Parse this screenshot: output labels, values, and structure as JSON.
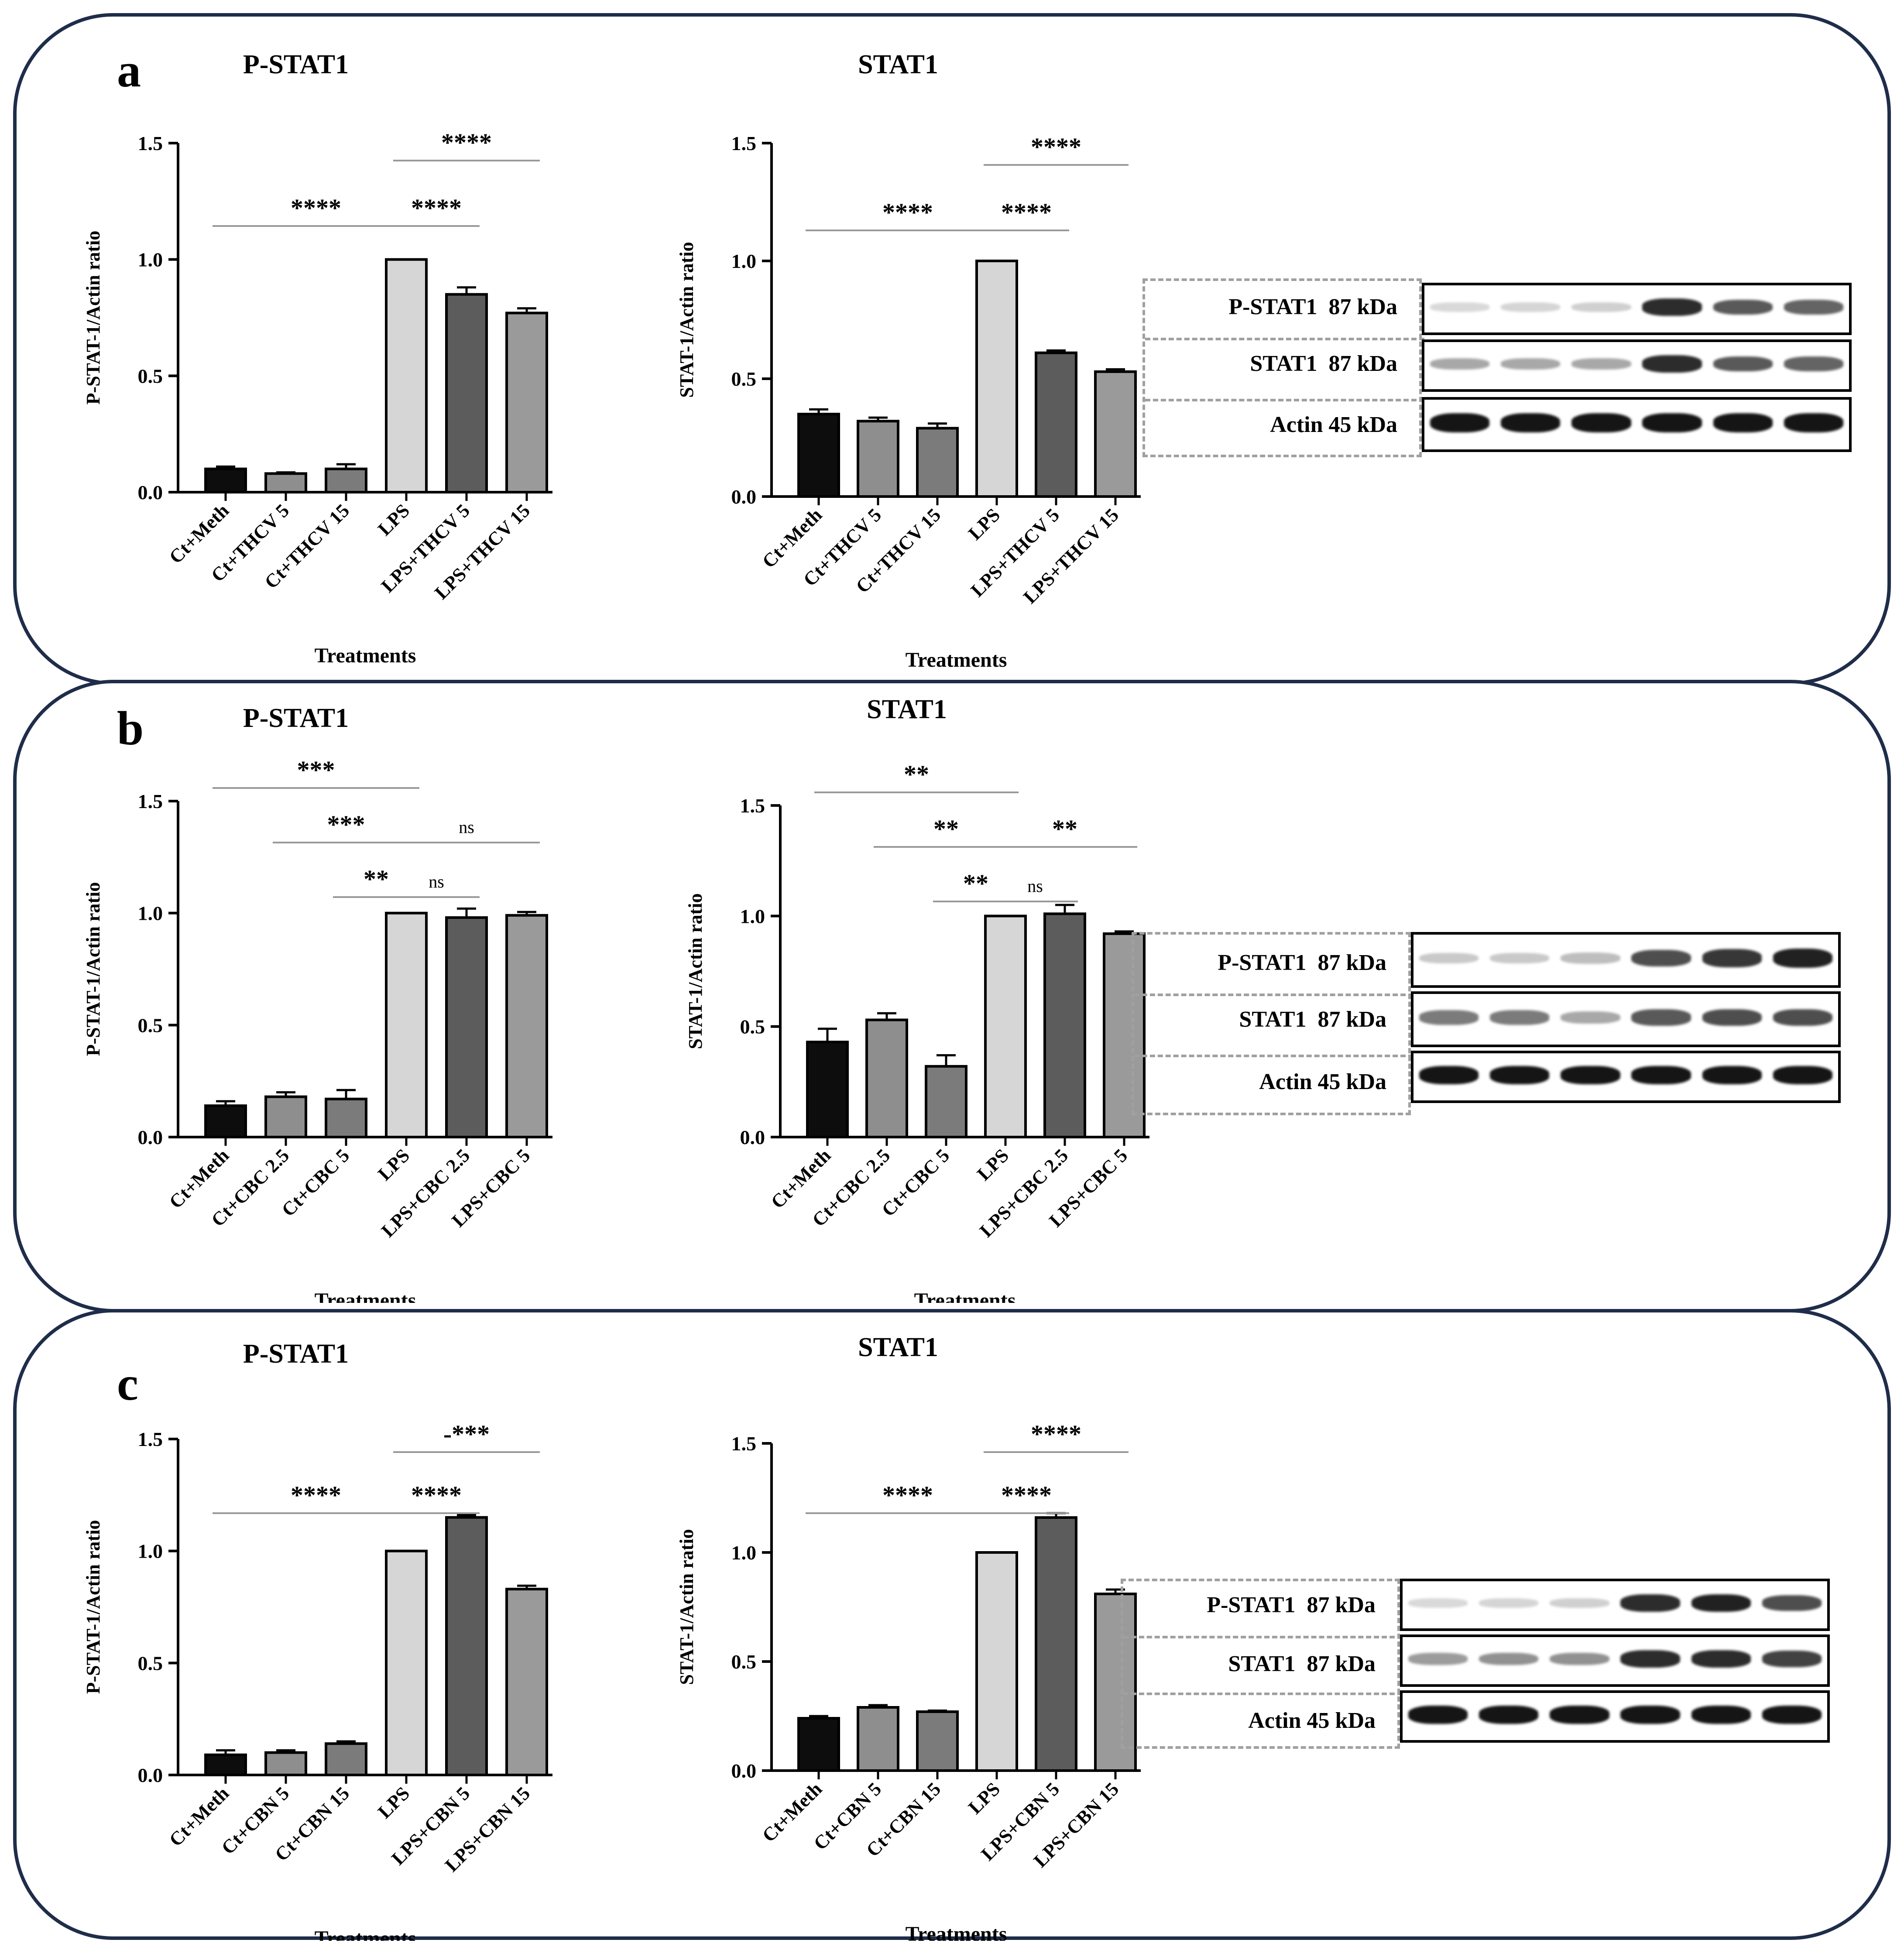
{
  "panels": [
    {
      "letter": "a",
      "charts": [
        {
          "title": "P-STAT1",
          "ylabel": "P-STAT-1/Actin ratio",
          "xlabel": "Treatments",
          "yticks": [
            "0.0",
            "0.5",
            "1.0",
            "1.5"
          ],
          "ticklabel_decimals": 1
        },
        {
          "title": "STAT1",
          "ylabel": "STAT-1/Actin ratio",
          "xlabel": "Treatments",
          "yticks": [
            "0.0",
            "0.5",
            "1.0",
            "1.5"
          ]
        }
      ],
      "blot": {
        "labels": [
          "P-STAT1  87 kDa",
          "STAT1  87 kDa",
          "Actin 45 kDa"
        ]
      }
    },
    {
      "letter": "b",
      "charts": [
        {
          "title": "P-STAT1",
          "ylabel": "P-STAT-1/Actin ratio",
          "xlabel": "Treatments",
          "yticks": [
            "0.0",
            "0.5",
            "1.0",
            "1.5"
          ]
        },
        {
          "title": "STAT1",
          "ylabel": "STAT-1/Actin ratio",
          "xlabel": "Treatments",
          "yticks": [
            "0.0",
            "0.5",
            "1.0",
            "1.5"
          ]
        }
      ],
      "blot": {
        "labels": [
          "P-STAT1  87 kDa",
          "STAT1  87 kDa",
          "Actin 45 kDa"
        ]
      }
    },
    {
      "letter": "c",
      "charts": [
        {
          "title": "P-STAT1",
          "ylabel": "P-STAT-1/Actin ratio",
          "xlabel": "Treatments",
          "yticks": [
            "0.0",
            "0.5",
            "1.0",
            "1.5"
          ]
        },
        {
          "title": "STAT1",
          "ylabel": "STAT-1/Actin ratio",
          "xlabel": "Treatments",
          "yticks": [
            "0.0",
            "0.5",
            "1.0",
            "1.5"
          ]
        }
      ],
      "blot": {
        "labels": [
          "P-STAT1  87 kDa",
          "STAT1  87 kDa",
          "Actin 45 kDa"
        ]
      }
    }
  ],
  "bar_colors": [
    "#0d0d0d",
    "#8e8e8e",
    "#7b7b7b",
    "#d6d6d6",
    "#5c5c5c",
    "#9a9a9a"
  ],
  "chart_data": [
    {
      "type": "bar",
      "panel": "a",
      "title": "P-STAT1",
      "xlabel": "Treatments",
      "ylabel": "P-STAT-1/Actin ratio",
      "categories": [
        "Ct+Meth",
        "Ct+THCV 5",
        "Ct+THCV 15",
        "LPS",
        "LPS+THCV 5",
        "LPS+THCV 15"
      ],
      "values": [
        0.1,
        0.08,
        0.1,
        1.0,
        0.85,
        0.77
      ],
      "errors": [
        0.01,
        0.005,
        0.02,
        0.0,
        0.03,
        0.02
      ],
      "ylim": [
        0,
        1.5
      ],
      "significance": [
        {
          "from": 0,
          "to": 3,
          "label": "****",
          "level": 1
        },
        {
          "from": 3,
          "to": 4,
          "label": "****",
          "level": 1
        },
        {
          "from": 3,
          "to": 5,
          "label": "****",
          "level": 2
        }
      ]
    },
    {
      "type": "bar",
      "panel": "a",
      "title": "STAT1",
      "xlabel": "Treatments",
      "ylabel": "STAT-1/Actin ratio",
      "categories": [
        "Ct+Meth",
        "Ct+THCV 5",
        "Ct+THCV 15",
        "LPS",
        "LPS+THCV 5",
        "LPS+THCV 15"
      ],
      "values": [
        0.35,
        0.32,
        0.29,
        1.0,
        0.61,
        0.53
      ],
      "errors": [
        0.02,
        0.015,
        0.02,
        0.0,
        0.01,
        0.01
      ],
      "ylim": [
        0,
        1.5
      ],
      "significance": [
        {
          "from": 0,
          "to": 3,
          "label": "****",
          "level": 1
        },
        {
          "from": 3,
          "to": 4,
          "label": "****",
          "level": 1
        },
        {
          "from": 3,
          "to": 5,
          "label": "****",
          "level": 2
        }
      ]
    },
    {
      "type": "bar",
      "panel": "b",
      "title": "P-STAT1",
      "xlabel": "Treatments",
      "ylabel": "P-STAT-1/Actin ratio",
      "categories": [
        "Ct+Meth",
        "Ct+CBC 2.5",
        "Ct+CBC 5",
        "LPS",
        "LPS+CBC 2.5",
        "LPS+CBC 5"
      ],
      "values": [
        0.14,
        0.18,
        0.17,
        1.0,
        0.98,
        0.99
      ],
      "errors": [
        0.02,
        0.02,
        0.04,
        0.0,
        0.04,
        0.015
      ],
      "ylim": [
        0,
        1.5
      ],
      "significance": [
        {
          "from": 0,
          "to": 3,
          "label": "***",
          "level": 3
        },
        {
          "from": 1,
          "to": 3,
          "label": "***",
          "level": 2
        },
        {
          "from": 3,
          "to": 5,
          "label": "ns",
          "level": 2
        },
        {
          "from": 2,
          "to": 3,
          "label": "**",
          "level": 1
        },
        {
          "from": 3,
          "to": 4,
          "label": "ns",
          "level": 1
        }
      ]
    },
    {
      "type": "bar",
      "panel": "b",
      "title": "STAT1",
      "xlabel": "Treatments",
      "ylabel": "STAT-1/Actin ratio",
      "categories": [
        "Ct+Meth",
        "Ct+CBC 2.5",
        "Ct+CBC 5",
        "LPS",
        "LPS+CBC 2.5",
        "LPS+CBC 5"
      ],
      "values": [
        0.43,
        0.53,
        0.32,
        1.0,
        1.01,
        0.92
      ],
      "errors": [
        0.06,
        0.03,
        0.05,
        0.0,
        0.04,
        0.01
      ],
      "ylim": [
        0,
        1.5
      ],
      "significance": [
        {
          "from": 0,
          "to": 3,
          "label": "**",
          "level": 3
        },
        {
          "from": 1,
          "to": 3,
          "label": "**",
          "level": 2
        },
        {
          "from": 3,
          "to": 5,
          "label": "**",
          "level": 2
        },
        {
          "from": 2,
          "to": 3,
          "label": "**",
          "level": 1
        },
        {
          "from": 3,
          "to": 4,
          "label": "ns",
          "level": 1
        }
      ]
    },
    {
      "type": "bar",
      "panel": "c",
      "title": "P-STAT1",
      "xlabel": "Treatments",
      "ylabel": "P-STAT-1/Actin ratio",
      "categories": [
        "Ct+Meth",
        "Ct+CBN 5",
        "Ct+CBN 15",
        "LPS",
        "LPS+CBN 5",
        "LPS+CBN 15"
      ],
      "values": [
        0.09,
        0.1,
        0.14,
        1.0,
        1.15,
        0.83
      ],
      "errors": [
        0.02,
        0.01,
        0.01,
        0.0,
        0.01,
        0.015
      ],
      "ylim": [
        0,
        1.5
      ],
      "significance": [
        {
          "from": 0,
          "to": 3,
          "label": "****",
          "level": 1
        },
        {
          "from": 3,
          "to": 4,
          "label": "****",
          "level": 1
        },
        {
          "from": 3,
          "to": 5,
          "label": "-***",
          "level": 2
        }
      ]
    },
    {
      "type": "bar",
      "panel": "c",
      "title": "STAT1",
      "xlabel": "Treatments",
      "ylabel": "STAT-1/Actin ratio",
      "categories": [
        "Ct+Meth",
        "Ct+CBN 5",
        "Ct+CBN 15",
        "LPS",
        "LPS+CBN 5",
        "LPS+CBN 15"
      ],
      "values": [
        0.24,
        0.29,
        0.27,
        1.0,
        1.16,
        0.81
      ],
      "errors": [
        0.01,
        0.01,
        0.005,
        0.0,
        0.02,
        0.02
      ],
      "ylim": [
        0,
        1.5
      ],
      "significance": [
        {
          "from": 0,
          "to": 3,
          "label": "****",
          "level": 1
        },
        {
          "from": 3,
          "to": 4,
          "label": "****",
          "level": 1
        },
        {
          "from": 3,
          "to": 5,
          "label": "****",
          "level": 2
        }
      ]
    }
  ]
}
